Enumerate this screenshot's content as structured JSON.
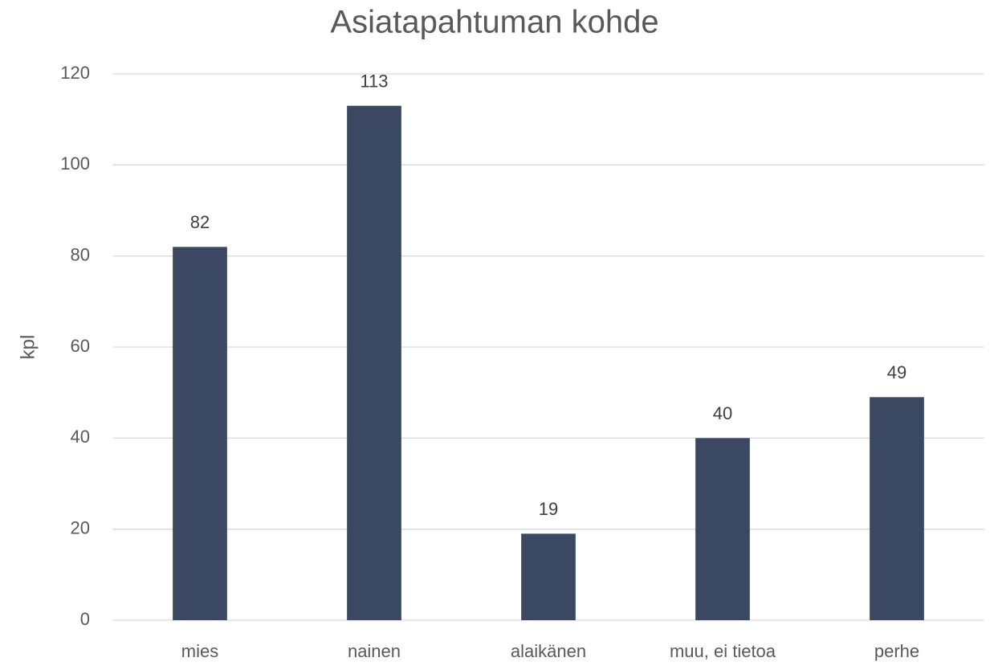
{
  "chart_data": {
    "type": "bar",
    "title": "Asiatapahtuman kohde",
    "y_label": "kpl",
    "categories": [
      "mies",
      "nainen",
      "alaikänen",
      "muu, ei tietoa",
      "perhe"
    ],
    "values": [
      82,
      113,
      19,
      40,
      49
    ],
    "color": "#3b4861",
    "ylim": [
      0,
      120
    ],
    "yticks": [
      0,
      20,
      40,
      60,
      80,
      100,
      120
    ],
    "grid": true,
    "data_labels": true
  }
}
